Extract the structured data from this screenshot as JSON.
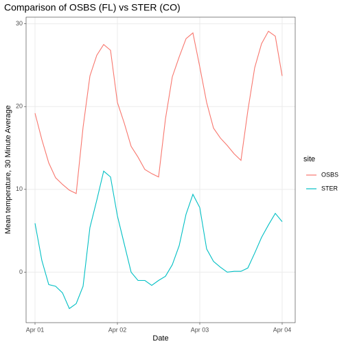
{
  "chart_data": {
    "type": "line",
    "title": "Comparison of OSBS (FL) vs STER (CO)",
    "x_label": "Date",
    "y_label": "Mean temperature, 30 Minute Average",
    "legend_title": "site",
    "x": [
      0,
      2,
      4,
      6,
      8,
      10,
      12,
      14,
      16,
      18,
      20,
      22,
      24,
      26,
      28,
      30,
      32,
      34,
      36,
      38,
      40,
      42,
      44,
      46,
      48,
      50,
      52,
      54,
      56,
      58,
      60,
      62,
      64,
      66,
      68,
      70,
      72
    ],
    "series": [
      {
        "name": "OSBS",
        "color": "#F8766D",
        "values": [
          19.2,
          16.0,
          13.2,
          11.4,
          10.6,
          9.9,
          9.5,
          17.5,
          23.7,
          26.2,
          27.5,
          26.8,
          20.5,
          18.0,
          15.2,
          13.9,
          12.4,
          11.9,
          11.5,
          18.5,
          23.6,
          26.0,
          28.2,
          28.9,
          24.8,
          20.5,
          17.4,
          16.2,
          15.3,
          14.3,
          13.5,
          19.5,
          24.7,
          27.6,
          29.1,
          28.5,
          23.7
        ]
      },
      {
        "name": "STER",
        "color": "#00BFC4",
        "values": [
          5.9,
          1.4,
          -1.5,
          -1.7,
          -2.5,
          -4.4,
          -3.8,
          -1.7,
          5.4,
          8.7,
          12.2,
          11.5,
          6.8,
          3.4,
          0.0,
          -1.0,
          -1.0,
          -1.6,
          -1.0,
          -0.5,
          0.9,
          3.2,
          7.0,
          9.4,
          7.8,
          2.8,
          1.3,
          0.6,
          0.0,
          0.1,
          0.1,
          0.5,
          2.3,
          4.2,
          5.7,
          7.1,
          6.1
        ]
      }
    ],
    "xlim": [
      -2.6,
      75.8
    ],
    "xticks": [
      {
        "value": 0,
        "label": "Apr 01"
      },
      {
        "value": 24,
        "label": "Apr 02"
      },
      {
        "value": 48,
        "label": "Apr 03"
      },
      {
        "value": 72,
        "label": "Apr 04"
      }
    ],
    "ylim": [
      -6.1,
      30.8
    ],
    "yticks": [
      0,
      10,
      20,
      30
    ],
    "grid": true,
    "legend": "right"
  }
}
